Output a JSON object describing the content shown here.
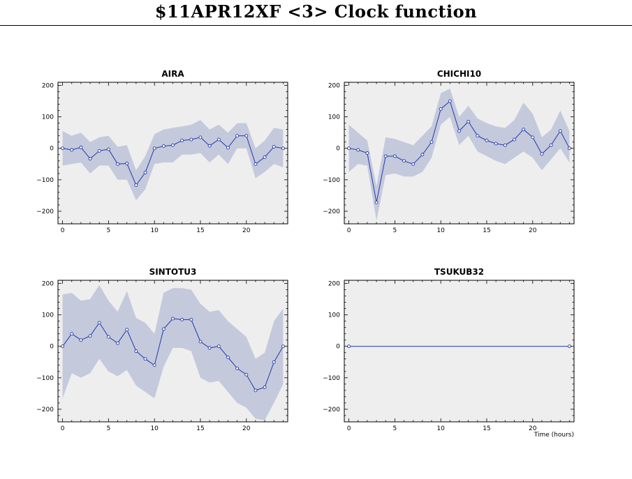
{
  "page": {
    "title": "$11APR12XF <3>  Clock function"
  },
  "x_axis_label": "Time (hours)",
  "chart_data": [
    {
      "type": "line",
      "title": "AIRA",
      "xlim": [
        -0.5,
        24.5
      ],
      "ylim": [
        -240,
        210
      ],
      "xticks": [
        0,
        5,
        10,
        15,
        20
      ],
      "yticks": [
        200,
        100,
        0,
        -100,
        -200
      ],
      "x": [
        0,
        1,
        2,
        3,
        4,
        5,
        6,
        7,
        8,
        9,
        10,
        11,
        12,
        13,
        14,
        15,
        16,
        17,
        18,
        19,
        20,
        21,
        22,
        23,
        24
      ],
      "series": [
        {
          "values": [
            0,
            -5,
            3,
            -33,
            -8,
            -3,
            -50,
            -48,
            -117,
            -77,
            0,
            7,
            10,
            25,
            28,
            35,
            8,
            28,
            2,
            40,
            40,
            -50,
            -28,
            5,
            0
          ],
          "band_upper": [
            55,
            40,
            50,
            20,
            35,
            40,
            5,
            10,
            -70,
            -25,
            45,
            60,
            65,
            70,
            75,
            90,
            60,
            75,
            50,
            80,
            80,
            0,
            25,
            65,
            60
          ],
          "band_lower": [
            -55,
            -50,
            -45,
            -80,
            -55,
            -55,
            -100,
            -100,
            -165,
            -130,
            -50,
            -45,
            -45,
            -20,
            -20,
            -15,
            -45,
            -20,
            -50,
            0,
            0,
            -95,
            -75,
            -50,
            -60
          ]
        }
      ]
    },
    {
      "type": "line",
      "title": "CHICHI10",
      "xlim": [
        -0.5,
        24.5
      ],
      "ylim": [
        -240,
        210
      ],
      "xticks": [
        0,
        5,
        10,
        15,
        20
      ],
      "yticks": [
        200,
        100,
        0,
        -100,
        -200
      ],
      "x": [
        0,
        1,
        2,
        3,
        4,
        5,
        6,
        7,
        8,
        9,
        10,
        11,
        12,
        13,
        14,
        15,
        16,
        17,
        18,
        19,
        20,
        21,
        22,
        23,
        24
      ],
      "series": [
        {
          "values": [
            0,
            -5,
            -15,
            -172,
            -25,
            -25,
            -40,
            -50,
            -20,
            20,
            125,
            150,
            55,
            85,
            40,
            25,
            15,
            10,
            28,
            60,
            35,
            -18,
            10,
            55,
            0
          ],
          "band_upper": [
            75,
            50,
            25,
            -120,
            35,
            30,
            20,
            10,
            40,
            70,
            175,
            190,
            100,
            135,
            95,
            80,
            70,
            65,
            90,
            145,
            110,
            35,
            60,
            120,
            55
          ],
          "band_lower": [
            -75,
            -50,
            -55,
            -230,
            -85,
            -80,
            -90,
            -90,
            -75,
            -30,
            75,
            100,
            10,
            40,
            -10,
            -25,
            -40,
            -50,
            -30,
            -10,
            -30,
            -70,
            -35,
            0,
            -45
          ]
        }
      ]
    },
    {
      "type": "line",
      "title": "SINTOTU3",
      "xlim": [
        -0.5,
        24.5
      ],
      "ylim": [
        -240,
        210
      ],
      "xticks": [
        0,
        5,
        10,
        15,
        20
      ],
      "yticks": [
        200,
        100,
        0,
        -100,
        -200
      ],
      "x": [
        0,
        1,
        2,
        3,
        4,
        5,
        6,
        7,
        8,
        9,
        10,
        11,
        12,
        13,
        14,
        15,
        16,
        17,
        18,
        19,
        20,
        21,
        22,
        23,
        24
      ],
      "series": [
        {
          "values": [
            0,
            40,
            20,
            33,
            75,
            30,
            10,
            53,
            -15,
            -40,
            -60,
            55,
            88,
            85,
            85,
            15,
            -5,
            0,
            -35,
            -70,
            -90,
            -140,
            -130,
            -50,
            0
          ],
          "band_upper": [
            165,
            170,
            145,
            150,
            195,
            145,
            110,
            175,
            90,
            75,
            40,
            170,
            185,
            185,
            180,
            135,
            110,
            115,
            80,
            55,
            30,
            -40,
            -20,
            80,
            120
          ],
          "band_lower": [
            -165,
            -85,
            -100,
            -85,
            -40,
            -80,
            -95,
            -75,
            -125,
            -145,
            -165,
            -65,
            -5,
            -5,
            -15,
            -100,
            -115,
            -110,
            -145,
            -180,
            -195,
            -230,
            -235,
            -180,
            -120
          ]
        }
      ]
    },
    {
      "type": "line",
      "title": "TSUKUB32",
      "xlim": [
        -0.5,
        24.5
      ],
      "ylim": [
        -240,
        210
      ],
      "xticks": [
        0,
        5,
        10,
        15,
        20
      ],
      "yticks": [
        200,
        100,
        0,
        -100,
        -200
      ],
      "x": [
        0,
        24
      ],
      "series": [
        {
          "values": [
            0,
            0
          ],
          "band_upper": [
            0,
            0
          ],
          "band_lower": [
            0,
            0
          ]
        }
      ]
    }
  ],
  "colors": {
    "panel_bg": "#eeeeee",
    "band": "#c5c9dc",
    "line": "#1f3aa8"
  }
}
